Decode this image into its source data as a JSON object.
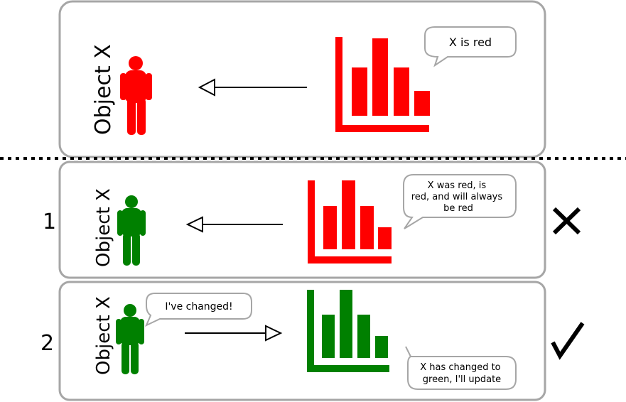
{
  "colors": {
    "red": "#ff0000",
    "green": "#008000",
    "panel_border": "#a6a6a6"
  },
  "top": {
    "object_label": "Object X",
    "bubble": "X is red"
  },
  "row1": {
    "number": "1",
    "object_label": "Object X",
    "bubble_lines": [
      "X was red, is",
      "red, and will always",
      "be red"
    ],
    "verdict": "cross"
  },
  "row2": {
    "number": "2",
    "object_label": "Object X",
    "object_bubble": "I've changed!",
    "chart_bubble_lines": [
      "X has changed to",
      "green, I'll update"
    ],
    "verdict": "check"
  }
}
